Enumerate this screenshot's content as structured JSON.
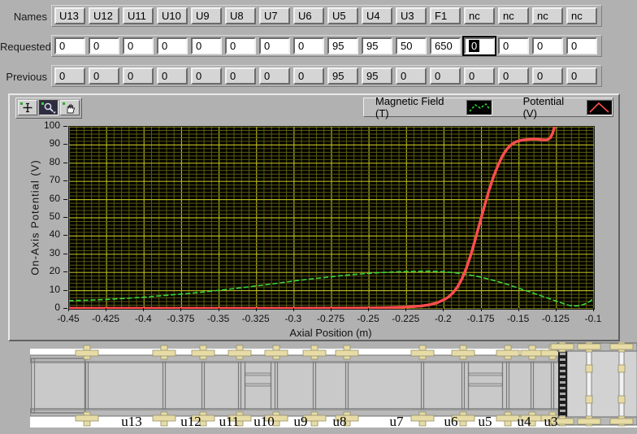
{
  "controls": {
    "rows": [
      {
        "label": "Names",
        "type": "names",
        "values": [
          "U13",
          "U12",
          "U11",
          "U10",
          "U9",
          "U8",
          "U7",
          "U6",
          "U5",
          "U4",
          "U3",
          "F1",
          "nc",
          "nc",
          "nc",
          "nc"
        ]
      },
      {
        "label": "Requested",
        "type": "inputs",
        "values": [
          "0",
          "0",
          "0",
          "0",
          "0",
          "0",
          "0",
          "0",
          "95",
          "95",
          "50",
          "650",
          "0",
          "0",
          "0",
          "0"
        ],
        "focused_index": 12
      },
      {
        "label": "Previous",
        "type": "indicators",
        "values": [
          "0",
          "0",
          "0",
          "0",
          "0",
          "0",
          "0",
          "0",
          "95",
          "95",
          "0",
          "0",
          "0",
          "0",
          "0",
          "0"
        ]
      }
    ]
  },
  "toolbar": {
    "buttons": [
      {
        "name": "cursor-tool",
        "pressed": false
      },
      {
        "name": "zoom-tool",
        "pressed": true
      },
      {
        "name": "pan-tool",
        "pressed": false
      }
    ]
  },
  "legend": {
    "items": [
      {
        "label": "Magnetic Field (T)",
        "color": "#3ad43a",
        "style": "dashed"
      },
      {
        "label": "Potential (V)",
        "color": "#ff4d4d",
        "style": "solid"
      }
    ]
  },
  "chart_data": {
    "type": "line",
    "title": "",
    "xlabel": "Axial Position (m)",
    "ylabel": "On-Axis Potential (V)",
    "xlim": [
      -0.45,
      -0.1
    ],
    "ylim": [
      0,
      100
    ],
    "grid": true,
    "plot_bg": "#000000",
    "grid_major_color": "#b4b41e",
    "grid_minor_color": "#5c5c10",
    "x_ticks": [
      "-0.45",
      "-0.425",
      "-0.4",
      "-0.375",
      "-0.35",
      "-0.325",
      "-0.3",
      "-0.275",
      "-0.25",
      "-0.225",
      "-0.2",
      "-0.175",
      "-0.15",
      "-0.125",
      "-0.1"
    ],
    "y_ticks": [
      "0",
      "10",
      "20",
      "30",
      "40",
      "50",
      "60",
      "70",
      "80",
      "90",
      "100"
    ],
    "series": [
      {
        "name": "Magnetic Field (T)",
        "color": "#3ad43a",
        "dash": true,
        "width": 1.6,
        "points": [
          [
            -0.45,
            4.5
          ],
          [
            -0.44,
            4.7
          ],
          [
            -0.43,
            5.0
          ],
          [
            -0.42,
            5.4
          ],
          [
            -0.41,
            5.9
          ],
          [
            -0.4,
            6.4
          ],
          [
            -0.39,
            7.1
          ],
          [
            -0.38,
            7.8
          ],
          [
            -0.37,
            8.5
          ],
          [
            -0.36,
            9.3
          ],
          [
            -0.35,
            10.2
          ],
          [
            -0.34,
            11.1
          ],
          [
            -0.33,
            12.1
          ],
          [
            -0.32,
            13.1
          ],
          [
            -0.31,
            14.2
          ],
          [
            -0.3,
            15.3
          ],
          [
            -0.29,
            16.3
          ],
          [
            -0.28,
            17.2
          ],
          [
            -0.27,
            18.1
          ],
          [
            -0.26,
            18.9
          ],
          [
            -0.25,
            19.5
          ],
          [
            -0.24,
            20.0
          ],
          [
            -0.23,
            20.4
          ],
          [
            -0.22,
            20.6
          ],
          [
            -0.21,
            20.7
          ],
          [
            -0.205,
            20.6
          ],
          [
            -0.2,
            20.4
          ],
          [
            -0.195,
            20.0
          ],
          [
            -0.19,
            19.5
          ],
          [
            -0.185,
            18.9
          ],
          [
            -0.18,
            18.2
          ],
          [
            -0.175,
            17.3
          ],
          [
            -0.17,
            16.3
          ],
          [
            -0.165,
            15.2
          ],
          [
            -0.16,
            14.0
          ],
          [
            -0.155,
            12.7
          ],
          [
            -0.15,
            11.3
          ],
          [
            -0.145,
            9.9
          ],
          [
            -0.14,
            8.5
          ],
          [
            -0.135,
            7.1
          ],
          [
            -0.13,
            5.7
          ],
          [
            -0.125,
            4.2
          ],
          [
            -0.12,
            2.8
          ],
          [
            -0.117,
            2.0
          ],
          [
            -0.114,
            1.6
          ],
          [
            -0.111,
            1.6
          ],
          [
            -0.108,
            2.1
          ],
          [
            -0.105,
            3.0
          ],
          [
            -0.102,
            4.5
          ],
          [
            -0.1,
            6.3
          ]
        ]
      },
      {
        "name": "Potential (V)",
        "color": "#ff4d4d",
        "dash": false,
        "width": 3.4,
        "points": [
          [
            -0.45,
            0.3
          ],
          [
            -0.3,
            0.3
          ],
          [
            -0.26,
            0.4
          ],
          [
            -0.24,
            0.6
          ],
          [
            -0.225,
            1.0
          ],
          [
            -0.215,
            1.6
          ],
          [
            -0.21,
            2.2
          ],
          [
            -0.205,
            3.2
          ],
          [
            -0.2,
            5.0
          ],
          [
            -0.197,
            6.5
          ],
          [
            -0.194,
            8.8
          ],
          [
            -0.191,
            12.0
          ],
          [
            -0.188,
            16.5
          ],
          [
            -0.185,
            22.5
          ],
          [
            -0.182,
            30.0
          ],
          [
            -0.179,
            38.5
          ],
          [
            -0.176,
            47.5
          ],
          [
            -0.173,
            56.5
          ],
          [
            -0.17,
            65.0
          ],
          [
            -0.167,
            72.5
          ],
          [
            -0.164,
            78.8
          ],
          [
            -0.161,
            84.0
          ],
          [
            -0.158,
            87.8
          ],
          [
            -0.155,
            90.3
          ],
          [
            -0.152,
            91.8
          ],
          [
            -0.148,
            92.7
          ],
          [
            -0.144,
            93.1
          ],
          [
            -0.14,
            93.2
          ],
          [
            -0.137,
            93.1
          ],
          [
            -0.134,
            92.8
          ],
          [
            -0.131,
            92.9
          ],
          [
            -0.129,
            94.0
          ],
          [
            -0.1275,
            96.5
          ],
          [
            -0.126,
            101.0
          ]
        ]
      }
    ]
  },
  "schematic": {
    "labels": [
      "u13",
      "u12",
      "u11",
      "u10",
      "u9",
      "u8",
      "u7",
      "u6",
      "u5",
      "u4",
      "u3"
    ]
  }
}
